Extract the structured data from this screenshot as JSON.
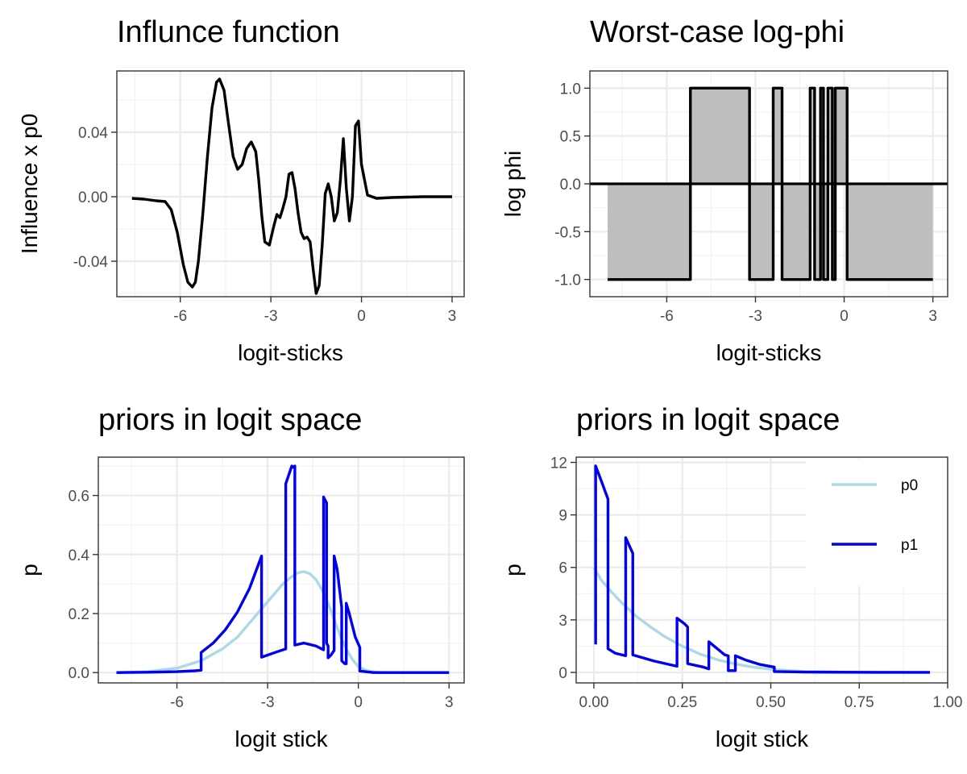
{
  "chart_data": [
    {
      "id": "p1",
      "type": "line",
      "title": "Influnce function",
      "xlabel": "logit-sticks",
      "ylabel": "Influence x p0",
      "xlim": [
        -8.1,
        3.4
      ],
      "ylim": [
        -0.062,
        0.078
      ],
      "xticks": [
        -6,
        -3,
        0,
        3
      ],
      "xticklabels": [
        "-6",
        "-3",
        "0",
        "3"
      ],
      "yticks": [
        -0.04,
        0,
        0.04
      ],
      "yticklabels": [
        "-0.04",
        "0.00",
        "0.04"
      ],
      "grid": true,
      "series": [
        {
          "color": "#000000",
          "x": [
            -7.6,
            -7.2,
            -6.8,
            -6.5,
            -6.3,
            -6.1,
            -5.9,
            -5.75,
            -5.6,
            -5.5,
            -5.4,
            -5.25,
            -5.1,
            -4.95,
            -4.8,
            -4.7,
            -4.55,
            -4.4,
            -4.25,
            -4.1,
            -3.95,
            -3.8,
            -3.65,
            -3.5,
            -3.4,
            -3.3,
            -3.2,
            -3.05,
            -2.9,
            -2.8,
            -2.7,
            -2.6,
            -2.5,
            -2.4,
            -2.3,
            -2.2,
            -2.1,
            -2.0,
            -1.9,
            -1.8,
            -1.7,
            -1.6,
            -1.5,
            -1.4,
            -1.3,
            -1.2,
            -1.1,
            -1.0,
            -0.9,
            -0.8,
            -0.7,
            -0.6,
            -0.5,
            -0.4,
            -0.3,
            -0.2,
            -0.1,
            0.0,
            0.2,
            0.5,
            1.0,
            2.0,
            3.0
          ],
          "y": [
            -0.001,
            -0.0015,
            -0.0025,
            -0.003,
            -0.008,
            -0.022,
            -0.042,
            -0.053,
            -0.056,
            -0.053,
            -0.04,
            -0.01,
            0.025,
            0.055,
            0.071,
            0.073,
            0.066,
            0.045,
            0.025,
            0.017,
            0.02,
            0.03,
            0.034,
            0.028,
            0.01,
            -0.012,
            -0.028,
            -0.03,
            -0.018,
            -0.011,
            -0.013,
            -0.007,
            0.0,
            0.014,
            0.015,
            0.005,
            -0.01,
            -0.022,
            -0.026,
            -0.025,
            -0.028,
            -0.045,
            -0.06,
            -0.055,
            -0.03,
            0.002,
            0.008,
            0.0,
            -0.015,
            -0.01,
            0.01,
            0.036,
            0.005,
            -0.015,
            0.0,
            0.044,
            0.047,
            0.02,
            0.001,
            -0.001,
            -0.0005,
            0.0,
            0.0
          ]
        }
      ]
    },
    {
      "id": "p2",
      "type": "area",
      "title": "Worst-case log-phi",
      "xlabel": "logit-sticks",
      "ylabel": "log phi",
      "xlim": [
        -8.6,
        3.5
      ],
      "ylim": [
        -1.18,
        1.18
      ],
      "xticks": [
        -6,
        -3,
        0,
        3
      ],
      "xticklabels": [
        "-6",
        "-3",
        "0",
        "3"
      ],
      "yticks": [
        -1,
        -0.5,
        0,
        0.5,
        1
      ],
      "yticklabels": [
        "-1.0",
        "-0.5",
        "0.0",
        "0.5",
        "1.0"
      ],
      "grid": true,
      "baseline": 0,
      "fill": "#bebebe",
      "series": [
        {
          "color": "#000000",
          "x": [
            -8.0,
            -5.2,
            -5.2,
            -3.2,
            -3.2,
            -2.4,
            -2.4,
            -2.1,
            -2.1,
            -1.15,
            -1.15,
            -1.0,
            -1.0,
            -0.8,
            -0.8,
            -0.7,
            -0.7,
            -0.55,
            -0.55,
            -0.4,
            -0.4,
            -0.3,
            -0.3,
            0.1,
            0.1,
            3.0
          ],
          "y": [
            -1,
            -1,
            1,
            1,
            -1,
            -1,
            1,
            1,
            -1,
            -1,
            1,
            1,
            -1,
            -1,
            1,
            1,
            -1,
            -1,
            1,
            1,
            -1,
            -1,
            1,
            1,
            -1,
            -1
          ]
        }
      ]
    },
    {
      "id": "p3",
      "type": "line",
      "title": "priors in logit space",
      "xlabel": "logit stick",
      "ylabel": "p",
      "xlim": [
        -8.6,
        3.5
      ],
      "ylim": [
        -0.035,
        0.73
      ],
      "xticks": [
        -6,
        -3,
        0,
        3
      ],
      "xticklabels": [
        "-6",
        "-3",
        "0",
        "3"
      ],
      "yticks": [
        0,
        0.2,
        0.4,
        0.6
      ],
      "yticklabels": [
        "0.0",
        "0.2",
        "0.4",
        "0.6"
      ],
      "grid": true,
      "series": [
        {
          "name": "p0",
          "color": "#add8e6",
          "x": [
            -8.0,
            -7.0,
            -6.0,
            -5.2,
            -4.5,
            -4.0,
            -3.5,
            -3.0,
            -2.5,
            -2.2,
            -2.0,
            -1.8,
            -1.6,
            -1.4,
            -1.2,
            -1.0,
            -0.8,
            -0.6,
            -0.4,
            -0.2,
            0.0,
            0.3,
            0.6,
            1.0,
            2.0,
            3.0
          ],
          "y": [
            0.0,
            0.003,
            0.015,
            0.04,
            0.08,
            0.12,
            0.18,
            0.24,
            0.3,
            0.325,
            0.338,
            0.342,
            0.335,
            0.315,
            0.28,
            0.235,
            0.18,
            0.125,
            0.08,
            0.045,
            0.02,
            0.006,
            0.001,
            0.0,
            0.0,
            0.0
          ]
        },
        {
          "name": "p1",
          "color": "#0000ee",
          "x": [
            -8.0,
            -7.0,
            -6.0,
            -5.4,
            -5.2,
            -5.2,
            -4.8,
            -4.4,
            -4.0,
            -3.6,
            -3.2,
            -3.2,
            -2.7,
            -2.4,
            -2.4,
            -2.3,
            -2.2,
            -2.2,
            -2.1,
            -2.1,
            -1.8,
            -1.4,
            -1.15,
            -1.15,
            -1.05,
            -1.05,
            -1.0,
            -1.0,
            -0.9,
            -0.8,
            -0.8,
            -0.7,
            -0.55,
            -0.55,
            -0.5,
            -0.45,
            -0.4,
            -0.4,
            -0.3,
            -0.1,
            0.05,
            0.05,
            0.5,
            1.0,
            2.0,
            3.0
          ],
          "y": [
            0.0,
            0.001,
            0.003,
            0.006,
            0.008,
            0.068,
            0.1,
            0.145,
            0.205,
            0.285,
            0.395,
            0.052,
            0.07,
            0.08,
            0.64,
            0.67,
            0.7,
            0.695,
            0.7,
            0.093,
            0.1,
            0.09,
            0.077,
            0.595,
            0.575,
            0.1,
            0.09,
            0.05,
            0.06,
            0.075,
            0.395,
            0.35,
            0.22,
            0.04,
            0.035,
            0.03,
            0.03,
            0.235,
            0.2,
            0.12,
            0.085,
            0.005,
            0.0,
            0.0,
            0.0,
            0.0
          ]
        }
      ]
    },
    {
      "id": "p4",
      "type": "line",
      "title": "priors in logit space",
      "xlabel": "logit stick",
      "ylabel": "p",
      "xlim": [
        -0.05,
        1.0
      ],
      "ylim": [
        -0.6,
        12.3
      ],
      "xticks": [
        0,
        0.25,
        0.5,
        0.75,
        1.0
      ],
      "xticklabels": [
        "0.00",
        "0.25",
        "0.50",
        "0.75",
        "1.00"
      ],
      "yticks": [
        0,
        3,
        6,
        9,
        12
      ],
      "yticklabels": [
        "0",
        "3",
        "6",
        "9",
        "12"
      ],
      "grid": true,
      "legend": {
        "position": "top-right",
        "entries": [
          {
            "label": "p0",
            "color": "#add8e6"
          },
          {
            "label": "p1",
            "color": "#0000ee"
          }
        ]
      },
      "series": [
        {
          "name": "p0",
          "color": "#add8e6",
          "x": [
            0.0,
            0.02,
            0.05,
            0.08,
            0.12,
            0.16,
            0.2,
            0.25,
            0.3,
            0.35,
            0.4,
            0.45,
            0.5,
            0.55,
            0.6,
            0.7,
            0.8,
            0.95
          ],
          "y": [
            6.0,
            5.3,
            4.6,
            3.95,
            3.2,
            2.6,
            2.05,
            1.5,
            1.05,
            0.72,
            0.48,
            0.3,
            0.18,
            0.1,
            0.05,
            0.02,
            0.01,
            0.0
          ]
        },
        {
          "name": "p1",
          "color": "#0000ee",
          "x": [
            0.005,
            0.005,
            0.02,
            0.04,
            0.04,
            0.06,
            0.09,
            0.09,
            0.11,
            0.11,
            0.17,
            0.235,
            0.235,
            0.255,
            0.265,
            0.265,
            0.31,
            0.325,
            0.325,
            0.37,
            0.38,
            0.38,
            0.4,
            0.4,
            0.43,
            0.47,
            0.51,
            0.51,
            0.6,
            0.7,
            0.8,
            0.95
          ],
          "y": [
            1.6,
            11.8,
            11.0,
            9.9,
            1.35,
            1.1,
            0.95,
            7.7,
            6.8,
            1.0,
            0.65,
            0.35,
            3.1,
            2.8,
            2.6,
            0.5,
            0.3,
            0.2,
            1.75,
            1.0,
            0.95,
            0.1,
            0.1,
            0.95,
            0.7,
            0.45,
            0.3,
            0.05,
            0.02,
            0.01,
            0.0,
            0.0
          ]
        }
      ]
    }
  ]
}
